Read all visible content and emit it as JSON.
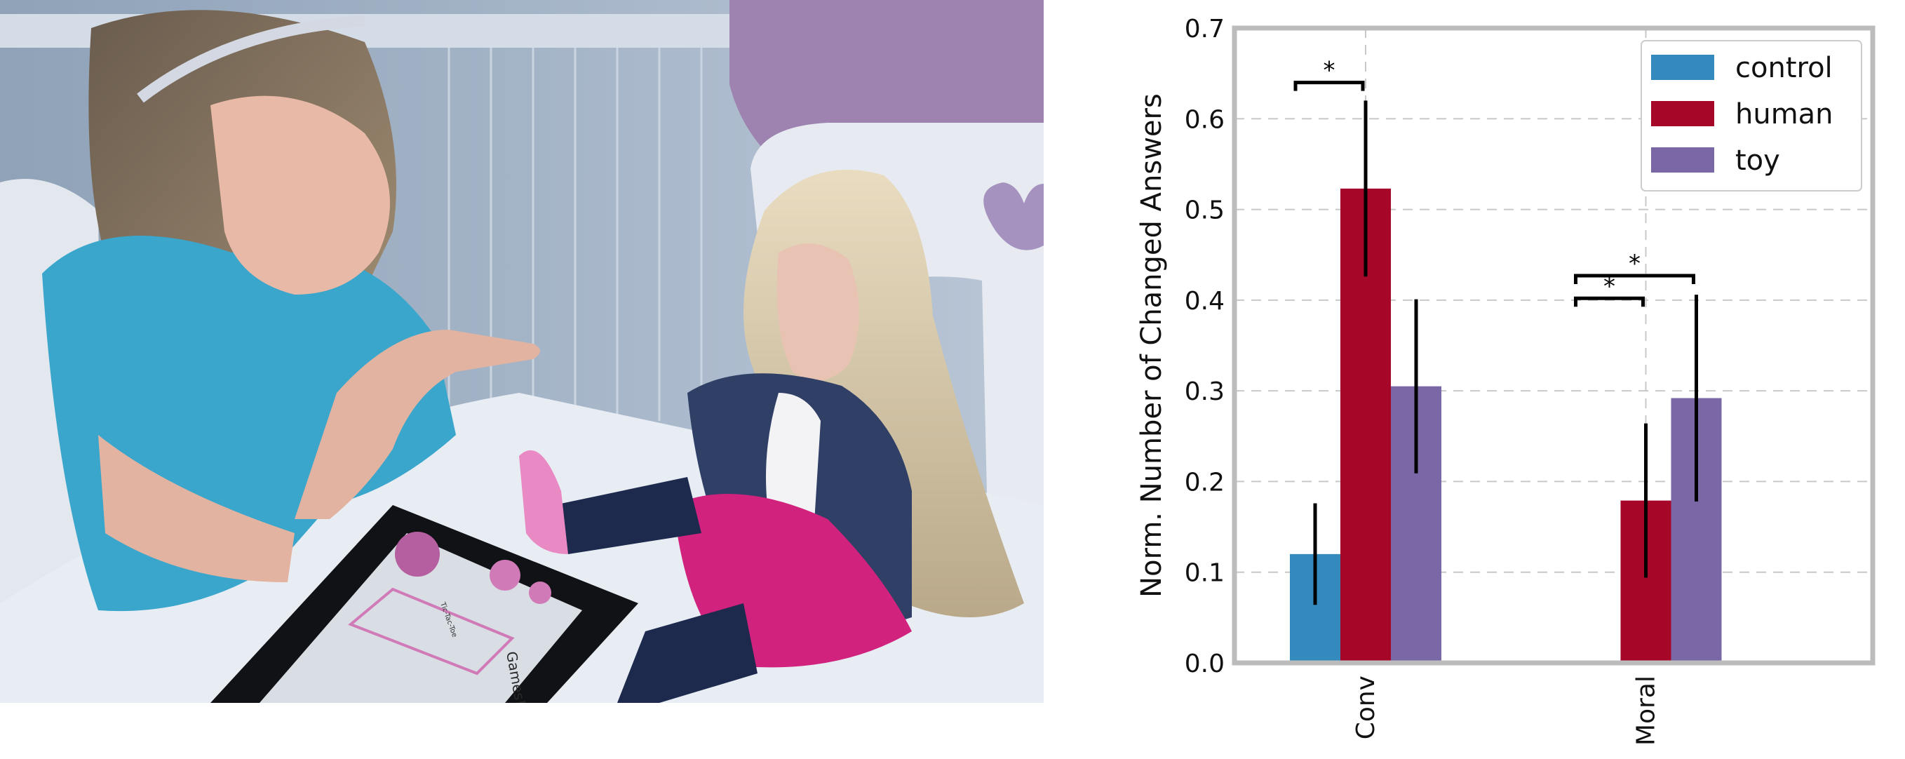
{
  "photo": {
    "tablet_text": "Games!",
    "tablet_title": "Tic-Tac-Toe"
  },
  "chart_data": {
    "type": "bar",
    "categories": [
      "Conv",
      "Moral"
    ],
    "series": [
      {
        "name": "control",
        "color": "#348ABD",
        "values": [
          0.12,
          null
        ],
        "errors": [
          0.056,
          null
        ]
      },
      {
        "name": "human",
        "color": "#A60628",
        "values": [
          0.523,
          0.179
        ],
        "errors": [
          0.097,
          0.085
        ]
      },
      {
        "name": "toy",
        "color": "#7A68A6",
        "values": [
          0.305,
          0.292
        ],
        "errors": [
          0.096,
          0.114
        ]
      }
    ],
    "ylabel": "Norm. Number of Changed Answers",
    "ylim": [
      0,
      0.7
    ],
    "yticks": [
      0.0,
      0.1,
      0.2,
      0.3,
      0.4,
      0.5,
      0.6,
      0.7
    ],
    "ytick_labels": [
      "0.0",
      "0.1",
      "0.2",
      "0.3",
      "0.4",
      "0.5",
      "0.6",
      "0.7"
    ],
    "grid": true,
    "legend": "top-right",
    "significance": [
      {
        "category": "Conv",
        "from": "control",
        "to": "human",
        "y": 0.64,
        "label": "*"
      },
      {
        "category": "Moral",
        "from": "control",
        "to": "human",
        "y": 0.402,
        "label": "*"
      },
      {
        "category": "Moral",
        "from": "control",
        "to": "toy",
        "y": 0.427,
        "label": "*"
      }
    ]
  }
}
